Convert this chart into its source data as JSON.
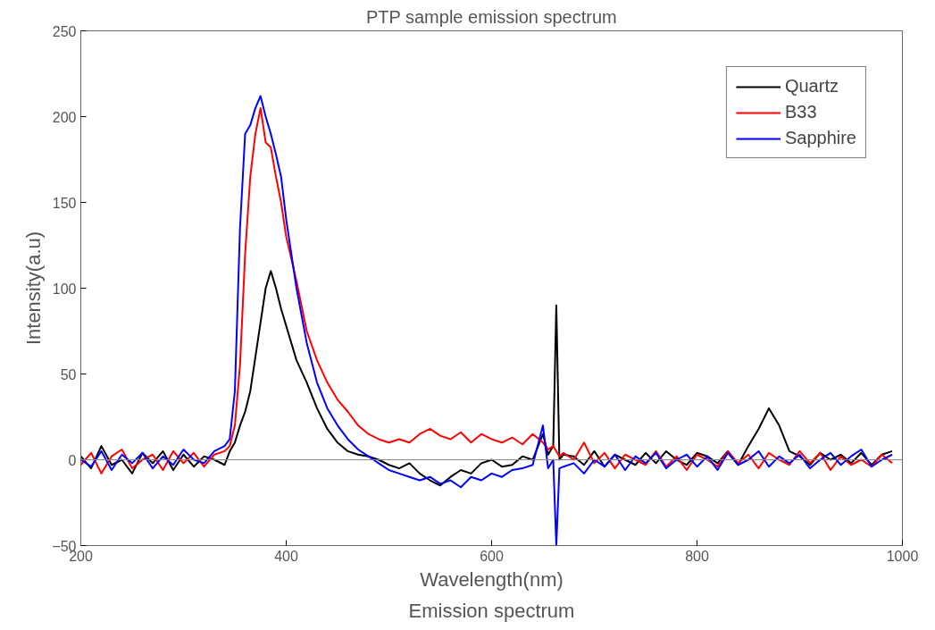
{
  "chart_data": {
    "type": "line",
    "title": "PTP sample emission spectrum",
    "xlabel": "Wavelength(nm)",
    "ylabel": "Intensity(a.u)",
    "annotations": [
      "Emission spectrum"
    ],
    "x": [
      200,
      210,
      220,
      230,
      240,
      250,
      260,
      270,
      280,
      290,
      300,
      310,
      320,
      330,
      340,
      345,
      350,
      355,
      360,
      365,
      370,
      375,
      380,
      385,
      390,
      395,
      400,
      410,
      420,
      430,
      440,
      450,
      460,
      470,
      480,
      490,
      500,
      510,
      520,
      530,
      540,
      550,
      560,
      570,
      580,
      590,
      600,
      610,
      620,
      630,
      640,
      650,
      655,
      660,
      663,
      666,
      670,
      680,
      690,
      700,
      710,
      720,
      730,
      740,
      750,
      760,
      770,
      780,
      790,
      800,
      810,
      820,
      830,
      840,
      850,
      860,
      870,
      880,
      890,
      900,
      910,
      920,
      930,
      940,
      950,
      960,
      970,
      980,
      990
    ],
    "series": [
      {
        "name": "Quartz",
        "color": "#000000",
        "values": [
          2,
          -5,
          8,
          -3,
          0,
          -8,
          4,
          -2,
          5,
          -6,
          3,
          -4,
          2,
          0,
          -3,
          5,
          10,
          20,
          28,
          40,
          60,
          80,
          100,
          110,
          100,
          88,
          78,
          58,
          45,
          30,
          18,
          10,
          5,
          3,
          2,
          0,
          -3,
          -5,
          -2,
          -8,
          -12,
          -15,
          -10,
          -6,
          -8,
          -2,
          0,
          -4,
          -3,
          2,
          0,
          15,
          3,
          8,
          90,
          0,
          3,
          2,
          -3,
          5,
          -4,
          3,
          0,
          -3,
          4,
          -2,
          5,
          0,
          -3,
          4,
          2,
          -2,
          5,
          -3,
          8,
          18,
          30,
          20,
          5,
          2,
          -3,
          4,
          0,
          3,
          -2,
          4,
          -3,
          3,
          5
        ]
      },
      {
        "name": "B33",
        "color": "#ff0000",
        "values": [
          -3,
          4,
          -8,
          2,
          6,
          -5,
          0,
          3,
          -6,
          5,
          -2,
          4,
          -4,
          3,
          5,
          8,
          20,
          55,
          120,
          165,
          190,
          205,
          185,
          182,
          165,
          150,
          130,
          104,
          75,
          58,
          45,
          35,
          28,
          20,
          15,
          12,
          10,
          12,
          10,
          15,
          18,
          14,
          12,
          16,
          10,
          15,
          12,
          10,
          13,
          9,
          15,
          10,
          6,
          8,
          5,
          2,
          4,
          0,
          10,
          -2,
          4,
          -5,
          3,
          0,
          -3,
          5,
          -4,
          2,
          -6,
          3,
          0,
          -4,
          5,
          -2,
          3,
          -5,
          4,
          0,
          -3,
          5,
          -2,
          4,
          -6,
          2,
          -3,
          0,
          -4,
          3,
          -2
        ]
      },
      {
        "name": "Sapphire",
        "color": "#0000ff",
        "values": [
          0,
          -4,
          5,
          -6,
          3,
          -2,
          4,
          -5,
          2,
          -3,
          6,
          0,
          -2,
          5,
          8,
          12,
          40,
          135,
          190,
          195,
          205,
          212,
          200,
          190,
          178,
          165,
          140,
          100,
          68,
          45,
          30,
          20,
          12,
          6,
          2,
          -2,
          -6,
          -8,
          -10,
          -12,
          -10,
          -14,
          -12,
          -16,
          -10,
          -12,
          -8,
          -10,
          -6,
          -5,
          -3,
          20,
          -5,
          0,
          -50,
          -5,
          -4,
          -2,
          -8,
          0,
          -4,
          3,
          -6,
          2,
          -2,
          4,
          -5,
          0,
          3,
          -4,
          2,
          -6,
          4,
          -3,
          0,
          5,
          -4,
          2,
          -2,
          3,
          -5,
          0,
          4,
          -3,
          2,
          6,
          -4,
          0,
          3
        ]
      }
    ],
    "xlim": [
      200,
      1000
    ],
    "xticks": [
      200,
      400,
      600,
      800,
      1000
    ],
    "ylim": [
      -50,
      250
    ],
    "yticks": [
      {
        "value": -50,
        "label": "−50"
      },
      0,
      50,
      100,
      150,
      200,
      250
    ],
    "ref_lines": [
      {
        "axis": "y",
        "value": 0,
        "color": "#888888"
      }
    ],
    "legend": "top right",
    "grid": false,
    "line_style": "solid"
  }
}
